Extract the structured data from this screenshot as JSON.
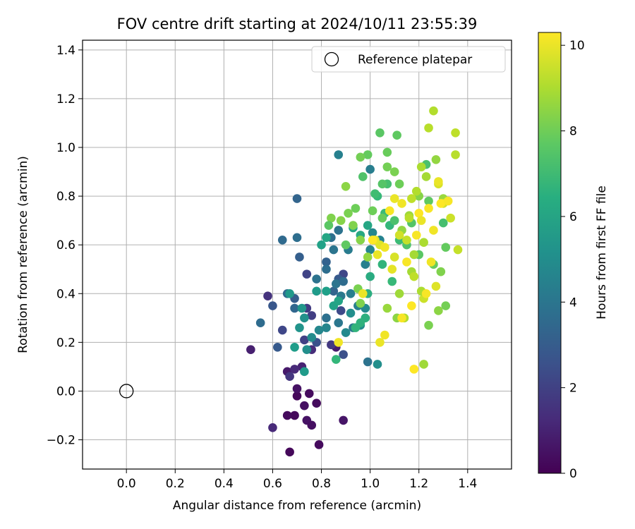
{
  "chart_data": {
    "type": "scatter",
    "title": "FOV centre drift starting at 2024/10/11 23:55:39",
    "xlabel": "Angular distance from reference (arcmin)",
    "ylabel": "Rotation from reference (arcmin)",
    "xlim": [
      -0.18,
      1.58
    ],
    "ylim": [
      -0.32,
      1.44
    ],
    "xticks": [
      0.0,
      0.2,
      0.4,
      0.6,
      0.8,
      1.0,
      1.2,
      1.4
    ],
    "xtick_labels": [
      "0.0",
      "0.2",
      "0.4",
      "0.6",
      "0.8",
      "1.0",
      "1.2",
      "1.4"
    ],
    "yticks": [
      -0.2,
      0.0,
      0.2,
      0.4,
      0.6,
      0.8,
      1.0,
      1.2,
      1.4
    ],
    "ytick_labels": [
      "−0.2",
      "0.0",
      "0.2",
      "0.4",
      "0.6",
      "0.8",
      "1.0",
      "1.2",
      "1.4"
    ],
    "grid": true,
    "legend": {
      "position": "upper-right",
      "entries": [
        "Reference platepar"
      ]
    },
    "reference_point": {
      "x": 0.0,
      "y": 0.0,
      "marker": "open-circle"
    },
    "colorbar": {
      "label": "Hours from first FF file",
      "colormap": "viridis",
      "range": [
        0,
        10.3
      ],
      "ticks": [
        0,
        2,
        4,
        6,
        8,
        10
      ],
      "tick_labels": [
        "0",
        "2",
        "4",
        "6",
        "8",
        "10"
      ]
    },
    "series": [
      {
        "points": [
          [
            0.7,
            -0.02,
            0.2
          ],
          [
            0.75,
            -0.01,
            0.3
          ],
          [
            0.78,
            -0.05,
            0.3
          ],
          [
            0.73,
            -0.06,
            0.4
          ],
          [
            0.69,
            -0.1,
            0.2
          ],
          [
            0.66,
            -0.1,
            0.3
          ],
          [
            0.74,
            -0.12,
            0.5
          ],
          [
            0.76,
            -0.14,
            0.4
          ],
          [
            0.89,
            -0.12,
            0.6
          ],
          [
            0.79,
            -0.22,
            0.3
          ],
          [
            0.67,
            -0.25,
            0.2
          ],
          [
            0.6,
            -0.15,
            1.2
          ],
          [
            0.7,
            0.01,
            0.5
          ],
          [
            0.51,
            0.17,
            0.9
          ],
          [
            0.66,
            0.08,
            0.7
          ],
          [
            0.72,
            0.1,
            1.0
          ],
          [
            0.69,
            0.09,
            1.2
          ],
          [
            0.76,
            0.17,
            1.3
          ],
          [
            0.86,
            0.18,
            0.8
          ],
          [
            0.58,
            0.39,
            1.5
          ],
          [
            0.67,
            0.06,
            1.6
          ],
          [
            0.74,
            0.34,
            1.8
          ],
          [
            0.76,
            0.31,
            1.9
          ],
          [
            0.84,
            0.19,
            1.7
          ],
          [
            0.73,
            0.21,
            2.0
          ],
          [
            0.74,
            0.48,
            2.1
          ],
          [
            0.89,
            0.48,
            2.2
          ],
          [
            0.88,
            0.33,
            2.3
          ],
          [
            0.78,
            0.2,
            2.6
          ],
          [
            0.62,
            0.18,
            2.9
          ],
          [
            0.89,
            0.15,
            2.5
          ],
          [
            0.6,
            0.35,
            2.8
          ],
          [
            0.64,
            0.25,
            2.2
          ],
          [
            0.69,
            0.38,
            3.0
          ],
          [
            0.71,
            0.55,
            3.1
          ],
          [
            0.82,
            0.53,
            3.2
          ],
          [
            0.85,
            0.41,
            3.3
          ],
          [
            0.87,
            0.46,
            2.9
          ],
          [
            0.69,
            0.34,
            3.4
          ],
          [
            0.66,
            0.4,
            3.5
          ],
          [
            0.55,
            0.28,
            3.6
          ],
          [
            0.64,
            0.62,
            3.5
          ],
          [
            0.7,
            0.63,
            3.7
          ],
          [
            0.7,
            0.79,
            3.3
          ],
          [
            0.84,
            0.63,
            3.8
          ],
          [
            0.87,
            0.66,
            3.9
          ],
          [
            0.85,
            0.58,
            4.0
          ],
          [
            0.82,
            0.5,
            3.7
          ],
          [
            0.78,
            0.46,
            3.9
          ],
          [
            0.82,
            0.3,
            3.8
          ],
          [
            0.87,
            0.28,
            4.1
          ],
          [
            0.88,
            0.39,
            4.2
          ],
          [
            0.86,
            0.44,
            4.0
          ],
          [
            0.89,
            0.45,
            3.6
          ],
          [
            0.91,
            0.58,
            4.3
          ],
          [
            0.92,
            0.4,
            4.4
          ],
          [
            0.93,
            0.26,
            4.2
          ],
          [
            0.95,
            0.35,
            4.5
          ],
          [
            0.99,
            0.12,
            3.9
          ],
          [
            0.98,
            0.52,
            4.5
          ],
          [
            1.0,
            0.58,
            4.7
          ],
          [
            1.01,
            0.65,
            4.8
          ],
          [
            1.04,
            0.62,
            4.6
          ],
          [
            1.0,
            0.91,
            4.4
          ],
          [
            0.87,
            0.97,
            4.5
          ],
          [
            1.03,
            0.11,
            5.1
          ],
          [
            0.98,
            0.34,
            4.9
          ],
          [
            0.96,
            0.27,
            5.0
          ],
          [
            0.92,
            0.32,
            5.1
          ],
          [
            0.9,
            0.24,
            4.9
          ],
          [
            0.82,
            0.26,
            4.7
          ],
          [
            0.79,
            0.25,
            4.8
          ],
          [
            0.76,
            0.22,
            5.0
          ],
          [
            0.74,
            0.17,
            5.1
          ],
          [
            0.73,
            0.3,
            5.2
          ],
          [
            0.71,
            0.26,
            5.3
          ],
          [
            0.72,
            0.34,
            5.4
          ],
          [
            0.67,
            0.4,
            5.5
          ],
          [
            0.73,
            0.08,
            5.6
          ],
          [
            0.69,
            0.18,
            5.7
          ],
          [
            0.82,
            0.41,
            5.8
          ],
          [
            0.78,
            0.41,
            5.6
          ],
          [
            0.85,
            0.35,
            5.9
          ],
          [
            0.87,
            0.37,
            6.0
          ],
          [
            0.8,
            0.6,
            5.9
          ],
          [
            0.82,
            0.63,
            6.1
          ],
          [
            0.93,
            0.67,
            6.0
          ],
          [
            0.96,
            0.64,
            6.2
          ],
          [
            0.99,
            0.68,
            6.1
          ],
          [
            1.0,
            0.47,
            6.3
          ],
          [
            0.99,
            0.4,
            6.4
          ],
          [
            0.98,
            0.3,
            6.5
          ],
          [
            0.96,
            0.28,
            6.6
          ],
          [
            0.94,
            0.26,
            6.7
          ],
          [
            0.86,
            0.13,
            6.8
          ],
          [
            1.05,
            0.52,
            6.7
          ],
          [
            1.09,
            0.45,
            6.9
          ],
          [
            1.08,
            0.68,
            6.8
          ],
          [
            1.06,
            0.73,
            7.0
          ],
          [
            1.03,
            0.8,
            6.9
          ],
          [
            1.02,
            0.81,
            7.1
          ],
          [
            1.07,
            0.85,
            7.2
          ],
          [
            1.1,
            0.7,
            7.3
          ],
          [
            1.12,
            0.62,
            7.0
          ],
          [
            1.15,
            0.6,
            7.4
          ],
          [
            1.17,
            0.69,
            7.5
          ],
          [
            1.2,
            0.56,
            7.6
          ],
          [
            1.23,
            0.93,
            7.3
          ],
          [
            1.24,
            0.78,
            7.7
          ],
          [
            1.3,
            0.69,
            7.2
          ],
          [
            1.31,
            0.59,
            7.8
          ],
          [
            1.26,
            0.52,
            7.9
          ],
          [
            1.05,
            0.71,
            7.9
          ],
          [
            1.01,
            0.74,
            8.0
          ],
          [
            0.99,
            0.97,
            7.8
          ],
          [
            1.04,
            1.06,
            7.6
          ],
          [
            1.07,
            0.98,
            7.9
          ],
          [
            1.11,
            1.05,
            7.7
          ],
          [
            1.07,
            0.92,
            8.1
          ],
          [
            1.1,
            0.9,
            8.2
          ],
          [
            1.12,
            0.85,
            8.0
          ],
          [
            1.05,
            0.85,
            7.5
          ],
          [
            0.97,
            0.88,
            7.4
          ],
          [
            0.96,
            0.96,
            8.1
          ],
          [
            0.91,
            0.73,
            8.2
          ],
          [
            0.93,
            0.68,
            8.3
          ],
          [
            0.88,
            0.7,
            8.4
          ],
          [
            0.94,
            0.75,
            8.0
          ],
          [
            0.9,
            0.84,
            8.5
          ],
          [
            0.84,
            0.71,
            8.3
          ],
          [
            0.83,
            0.68,
            7.6
          ],
          [
            0.9,
            0.6,
            7.7
          ],
          [
            0.96,
            0.62,
            8.4
          ],
          [
            0.99,
            0.55,
            8.6
          ],
          [
            0.95,
            0.42,
            8.2
          ],
          [
            0.96,
            0.36,
            8.3
          ],
          [
            1.11,
            0.3,
            8.5
          ],
          [
            1.07,
            0.34,
            8.7
          ],
          [
            1.12,
            0.4,
            8.8
          ],
          [
            1.17,
            0.49,
            8.9
          ],
          [
            1.2,
            0.8,
            8.4
          ],
          [
            1.27,
            0.95,
            8.6
          ],
          [
            1.3,
            0.79,
            8.7
          ],
          [
            1.31,
            0.35,
            8.1
          ],
          [
            1.28,
            0.33,
            8.5
          ],
          [
            1.29,
            0.49,
            8.3
          ],
          [
            1.24,
            0.27,
            8.2
          ],
          [
            1.13,
            0.66,
            8.6
          ],
          [
            1.16,
            0.72,
            8.8
          ],
          [
            1.18,
            0.56,
            8.9
          ],
          [
            1.22,
            0.61,
            9.0
          ],
          [
            1.26,
            1.15,
            9.1
          ],
          [
            1.24,
            1.08,
            9.2
          ],
          [
            1.21,
            0.92,
            9.0
          ],
          [
            1.23,
            0.88,
            8.9
          ],
          [
            1.19,
            0.82,
            9.1
          ],
          [
            1.17,
            0.79,
            9.3
          ],
          [
            1.16,
            0.71,
            9.2
          ],
          [
            1.15,
            0.62,
            9.4
          ],
          [
            1.18,
            0.47,
            9.3
          ],
          [
            1.22,
            0.38,
            9.5
          ],
          [
            1.21,
            0.41,
            9.0
          ],
          [
            1.14,
            0.3,
            9.1
          ],
          [
            1.22,
            0.11,
            8.8
          ],
          [
            1.35,
            1.06,
            9.3
          ],
          [
            1.35,
            0.97,
            9.2
          ],
          [
            1.36,
            0.58,
            9.4
          ],
          [
            1.33,
            0.71,
            9.5
          ],
          [
            1.3,
            0.77,
            9.6
          ],
          [
            1.28,
            0.85,
            9.7
          ],
          [
            1.27,
            0.43,
            9.8
          ],
          [
            1.12,
            0.64,
            9.6
          ],
          [
            1.1,
            0.55,
            9.7
          ],
          [
            1.09,
            0.5,
            9.9
          ],
          [
            1.04,
            0.6,
            9.8
          ],
          [
            1.03,
            0.56,
            10.0
          ],
          [
            1.02,
            0.62,
            9.9
          ],
          [
            1.06,
            0.59,
            10.1
          ],
          [
            1.08,
            0.74,
            10.2
          ],
          [
            1.1,
            0.79,
            10.0
          ],
          [
            1.13,
            0.77,
            10.1
          ],
          [
            1.2,
            0.73,
            10.3
          ],
          [
            1.19,
            0.64,
            10.2
          ],
          [
            1.21,
            0.7,
            10.0
          ],
          [
            1.24,
            0.75,
            10.2
          ],
          [
            1.26,
            0.66,
            10.1
          ],
          [
            1.28,
            0.86,
            10.0
          ],
          [
            1.29,
            0.77,
            10.3
          ],
          [
            1.32,
            0.78,
            10.2
          ],
          [
            1.25,
            0.53,
            10.1
          ],
          [
            1.17,
            0.35,
            10.3
          ],
          [
            1.13,
            0.3,
            10.2
          ],
          [
            1.04,
            0.2,
            10.0
          ],
          [
            1.06,
            0.23,
            10.1
          ],
          [
            0.97,
            0.4,
            10.0
          ],
          [
            1.15,
            0.53,
            10.2
          ],
          [
            1.18,
            0.09,
            10.3
          ],
          [
            0.87,
            0.2,
            10.1
          ],
          [
            1.01,
            0.62,
            10.3
          ],
          [
            1.23,
            0.4,
            10.2
          ]
        ]
      }
    ]
  }
}
